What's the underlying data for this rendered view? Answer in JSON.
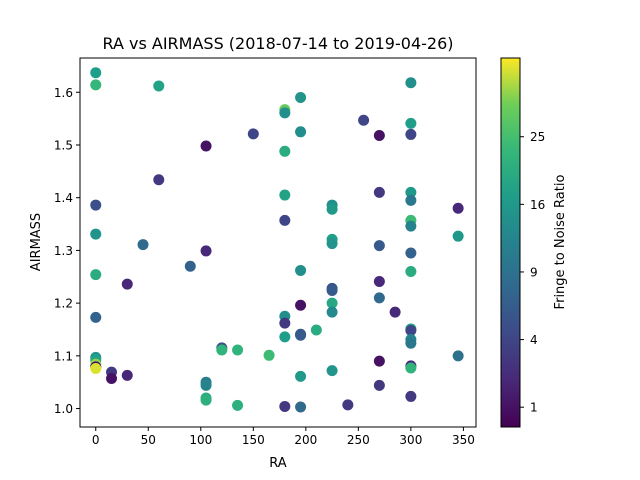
{
  "chart_data": {
    "type": "scatter",
    "title": "RA vs AIRMASS (2018-07-14 to 2019-04-26)",
    "xlabel": "RA",
    "ylabel": "AIRMASS",
    "xlim": [
      -15,
      362
    ],
    "ylim": [
      0.965,
      1.665
    ],
    "xticks": [
      "0",
      "50",
      "100",
      "150",
      "200",
      "250",
      "300",
      "350"
    ],
    "xtick_values": [
      0,
      50,
      100,
      150,
      200,
      250,
      300,
      350
    ],
    "yticks": [
      "1.0",
      "1.1",
      "1.2",
      "1.3",
      "1.4",
      "1.5",
      "1.6"
    ],
    "ytick_values": [
      1.0,
      1.1,
      1.2,
      1.3,
      1.4,
      1.5,
      1.6
    ],
    "colorbar": {
      "label": "Fringe to Noise Ratio",
      "colormap": "viridis",
      "scale": "sqrt",
      "range": [
        0.5,
        38
      ],
      "ticks": [
        "1",
        "4",
        "9",
        "16",
        "25"
      ],
      "tick_values": [
        1,
        4,
        9,
        16,
        25
      ]
    },
    "grid": false,
    "points": [
      {
        "x": 0,
        "y": 1.637,
        "c": 17
      },
      {
        "x": 0,
        "y": 1.614,
        "c": 23
      },
      {
        "x": 0,
        "y": 1.386,
        "c": 5
      },
      {
        "x": 0,
        "y": 1.331,
        "c": 15
      },
      {
        "x": 0,
        "y": 1.254,
        "c": 20
      },
      {
        "x": 0,
        "y": 1.173,
        "c": 7
      },
      {
        "x": 0,
        "y": 1.097,
        "c": 15
      },
      {
        "x": 0,
        "y": 1.092,
        "c": 18
      },
      {
        "x": 0,
        "y": 1.084,
        "c": 32
      },
      {
        "x": 0,
        "y": 1.079,
        "c": 1
      },
      {
        "x": 0,
        "y": 1.076,
        "c": 36
      },
      {
        "x": 15,
        "y": 1.069,
        "c": 3
      },
      {
        "x": 15,
        "y": 1.057,
        "c": 1
      },
      {
        "x": 30,
        "y": 1.236,
        "c": 2
      },
      {
        "x": 30,
        "y": 1.063,
        "c": 2
      },
      {
        "x": 45,
        "y": 1.311,
        "c": 8
      },
      {
        "x": 60,
        "y": 1.612,
        "c": 18
      },
      {
        "x": 60,
        "y": 1.434,
        "c": 3
      },
      {
        "x": 90,
        "y": 1.27,
        "c": 7
      },
      {
        "x": 105,
        "y": 1.498,
        "c": 1
      },
      {
        "x": 105,
        "y": 1.299,
        "c": 2
      },
      {
        "x": 105,
        "y": 1.05,
        "c": 11
      },
      {
        "x": 105,
        "y": 1.044,
        "c": 12
      },
      {
        "x": 105,
        "y": 1.02,
        "c": 20
      },
      {
        "x": 105,
        "y": 1.016,
        "c": 21
      },
      {
        "x": 120,
        "y": 1.115,
        "c": 5
      },
      {
        "x": 120,
        "y": 1.111,
        "c": 22
      },
      {
        "x": 135,
        "y": 1.111,
        "c": 22
      },
      {
        "x": 135,
        "y": 1.006,
        "c": 21
      },
      {
        "x": 150,
        "y": 1.521,
        "c": 4
      },
      {
        "x": 165,
        "y": 1.101,
        "c": 24
      },
      {
        "x": 180,
        "y": 1.567,
        "c": 29
      },
      {
        "x": 180,
        "y": 1.561,
        "c": 14
      },
      {
        "x": 180,
        "y": 1.488,
        "c": 20
      },
      {
        "x": 180,
        "y": 1.405,
        "c": 18
      },
      {
        "x": 180,
        "y": 1.357,
        "c": 4
      },
      {
        "x": 180,
        "y": 1.175,
        "c": 14
      },
      {
        "x": 180,
        "y": 1.162,
        "c": 3
      },
      {
        "x": 180,
        "y": 1.004,
        "c": 3
      },
      {
        "x": 180,
        "y": 1.136,
        "c": 17
      },
      {
        "x": 195,
        "y": 1.59,
        "c": 15
      },
      {
        "x": 195,
        "y": 1.525,
        "c": 14
      },
      {
        "x": 195,
        "y": 1.262,
        "c": 14
      },
      {
        "x": 195,
        "y": 1.196,
        "c": 1
      },
      {
        "x": 195,
        "y": 1.141,
        "c": 5
      },
      {
        "x": 195,
        "y": 1.139,
        "c": 6
      },
      {
        "x": 195,
        "y": 1.061,
        "c": 16
      },
      {
        "x": 195,
        "y": 1.003,
        "c": 8
      },
      {
        "x": 210,
        "y": 1.149,
        "c": 20
      },
      {
        "x": 225,
        "y": 1.386,
        "c": 14
      },
      {
        "x": 225,
        "y": 1.378,
        "c": 16
      },
      {
        "x": 225,
        "y": 1.321,
        "c": 17
      },
      {
        "x": 225,
        "y": 1.313,
        "c": 15
      },
      {
        "x": 225,
        "y": 1.228,
        "c": 5
      },
      {
        "x": 225,
        "y": 1.224,
        "c": 6
      },
      {
        "x": 225,
        "y": 1.2,
        "c": 19
      },
      {
        "x": 225,
        "y": 1.183,
        "c": 13
      },
      {
        "x": 225,
        "y": 1.072,
        "c": 15
      },
      {
        "x": 240,
        "y": 1.007,
        "c": 3
      },
      {
        "x": 255,
        "y": 1.547,
        "c": 4
      },
      {
        "x": 270,
        "y": 1.518,
        "c": 1
      },
      {
        "x": 270,
        "y": 1.41,
        "c": 3
      },
      {
        "x": 270,
        "y": 1.309,
        "c": 6
      },
      {
        "x": 270,
        "y": 1.241,
        "c": 2
      },
      {
        "x": 270,
        "y": 1.21,
        "c": 8
      },
      {
        "x": 270,
        "y": 1.09,
        "c": 1
      },
      {
        "x": 270,
        "y": 1.044,
        "c": 3
      },
      {
        "x": 285,
        "y": 1.183,
        "c": 2
      },
      {
        "x": 300,
        "y": 1.618,
        "c": 14
      },
      {
        "x": 300,
        "y": 1.541,
        "c": 17
      },
      {
        "x": 300,
        "y": 1.52,
        "c": 4
      },
      {
        "x": 300,
        "y": 1.41,
        "c": 16
      },
      {
        "x": 300,
        "y": 1.395,
        "c": 10
      },
      {
        "x": 300,
        "y": 1.357,
        "c": 24
      },
      {
        "x": 300,
        "y": 1.346,
        "c": 12
      },
      {
        "x": 300,
        "y": 1.295,
        "c": 7
      },
      {
        "x": 300,
        "y": 1.26,
        "c": 20
      },
      {
        "x": 300,
        "y": 1.151,
        "c": 18
      },
      {
        "x": 300,
        "y": 1.148,
        "c": 4
      },
      {
        "x": 300,
        "y": 1.131,
        "c": 12
      },
      {
        "x": 300,
        "y": 1.124,
        "c": 10
      },
      {
        "x": 300,
        "y": 1.081,
        "c": 2
      },
      {
        "x": 300,
        "y": 1.077,
        "c": 22
      },
      {
        "x": 300,
        "y": 1.023,
        "c": 3
      },
      {
        "x": 345,
        "y": 1.38,
        "c": 2
      },
      {
        "x": 345,
        "y": 1.327,
        "c": 16
      },
      {
        "x": 345,
        "y": 1.1,
        "c": 9
      }
    ]
  }
}
